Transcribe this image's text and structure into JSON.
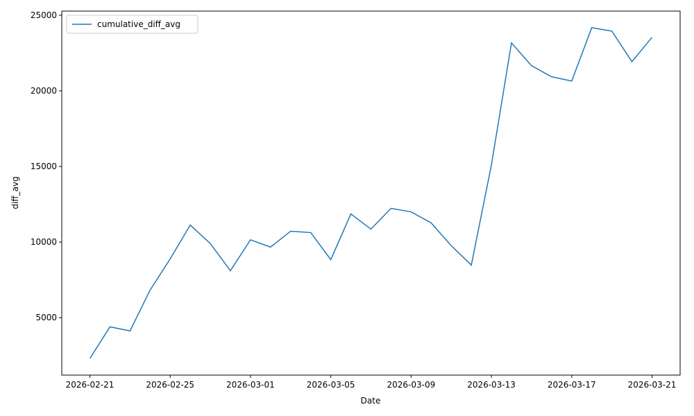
{
  "chart_data": {
    "type": "line",
    "xlabel": "Date",
    "ylabel": "diff_avg",
    "x": [
      "2026-02-21",
      "2026-02-22",
      "2026-02-23",
      "2026-02-24",
      "2026-02-25",
      "2026-02-26",
      "2026-02-27",
      "2026-02-28",
      "2026-03-01",
      "2026-03-02",
      "2026-03-03",
      "2026-03-04",
      "2026-03-05",
      "2026-03-06",
      "2026-03-07",
      "2026-03-08",
      "2026-03-09",
      "2026-03-10",
      "2026-03-11",
      "2026-03-12",
      "2026-03-13",
      "2026-03-14",
      "2026-03-15",
      "2026-03-16",
      "2026-03-17",
      "2026-03-18",
      "2026-03-19",
      "2026-03-20",
      "2026-03-21"
    ],
    "series": [
      {
        "name": "cumulative_diff_avg",
        "color": "#1f77b4",
        "values": [
          2300,
          4400,
          4130,
          6830,
          8890,
          11130,
          9900,
          8110,
          10150,
          9670,
          10720,
          10630,
          8840,
          11860,
          10860,
          12230,
          12000,
          11270,
          9760,
          8480,
          15100,
          23170,
          21660,
          20930,
          20650,
          24180,
          23950,
          21930,
          23540
        ]
      }
    ],
    "xlim": [
      "2026-02-19T14:24:00",
      "2026-03-22T09:36:00"
    ],
    "xticks": [
      "2026-02-21",
      "2026-02-25",
      "2026-03-01",
      "2026-03-05",
      "2026-03-09",
      "2026-03-13",
      "2026-03-17",
      "2026-03-21"
    ],
    "ylim": [
      1206,
      25274
    ],
    "yticks": [
      5000,
      10000,
      15000,
      20000,
      25000
    ],
    "legend": "upper left"
  }
}
